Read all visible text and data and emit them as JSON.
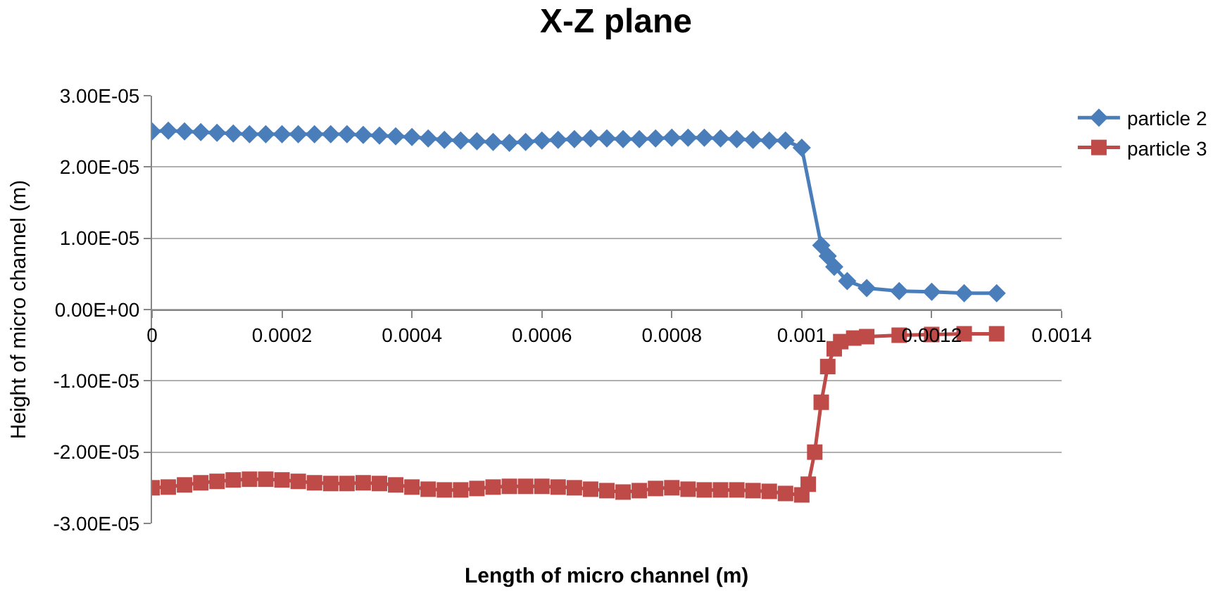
{
  "chart_data": {
    "type": "line",
    "title": "X-Z plane",
    "xlabel": "Length of micro channel (m)",
    "ylabel": "Height of micro channel (m)",
    "xlim": [
      0,
      0.0014
    ],
    "xticks": [
      0,
      0.0002,
      0.0004,
      0.0006,
      0.0008,
      0.001,
      0.0012,
      0.0014
    ],
    "ylim": [
      -3e-05,
      3e-05
    ],
    "yticks": [
      {
        "value": 3e-05,
        "label": "3.00E-05"
      },
      {
        "value": 2e-05,
        "label": "2.00E-05"
      },
      {
        "value": 1e-05,
        "label": "1.00E-05"
      },
      {
        "value": 0,
        "label": "0.00E+00"
      },
      {
        "value": -1e-05,
        "label": "-1.00E-05"
      },
      {
        "value": -2e-05,
        "label": "-2.00E-05"
      },
      {
        "value": -3e-05,
        "label": "-3.00E-05"
      }
    ],
    "grid": "y",
    "legend": "top right",
    "series": [
      {
        "name": "particle 2",
        "color": "#4a7ebb",
        "marker": "diamond",
        "x": [
          0,
          2.5e-05,
          5e-05,
          7.5e-05,
          0.0001,
          0.000125,
          0.00015,
          0.000175,
          0.0002,
          0.000225,
          0.00025,
          0.000275,
          0.0003,
          0.000325,
          0.00035,
          0.000375,
          0.0004,
          0.000425,
          0.00045,
          0.000475,
          0.0005,
          0.000525,
          0.00055,
          0.000575,
          0.0006,
          0.000625,
          0.00065,
          0.000675,
          0.0007,
          0.000725,
          0.00075,
          0.000775,
          0.0008,
          0.000825,
          0.00085,
          0.000875,
          0.0009,
          0.000925,
          0.00095,
          0.000975,
          0.001,
          0.00103,
          0.00104,
          0.00105,
          0.00107,
          0.0011,
          0.00115,
          0.0012,
          0.00125,
          0.0013
        ],
        "values": [
          2.5e-05,
          2.51e-05,
          2.5e-05,
          2.49e-05,
          2.48e-05,
          2.47e-05,
          2.46e-05,
          2.46e-05,
          2.46e-05,
          2.46e-05,
          2.46e-05,
          2.46e-05,
          2.46e-05,
          2.45e-05,
          2.44e-05,
          2.43e-05,
          2.42e-05,
          2.4e-05,
          2.38e-05,
          2.37e-05,
          2.36e-05,
          2.35e-05,
          2.34e-05,
          2.35e-05,
          2.37e-05,
          2.38e-05,
          2.39e-05,
          2.4e-05,
          2.4e-05,
          2.39e-05,
          2.39e-05,
          2.4e-05,
          2.41e-05,
          2.41e-05,
          2.41e-05,
          2.4e-05,
          2.39e-05,
          2.38e-05,
          2.37e-05,
          2.37e-05,
          2.27e-05,
          9e-06,
          7.5e-06,
          6e-06,
          4e-06,
          3e-06,
          2.6e-06,
          2.5e-06,
          2.3e-06,
          2.3e-06
        ]
      },
      {
        "name": "particle 3",
        "color": "#be4b48",
        "marker": "square",
        "x": [
          0,
          2.5e-05,
          5e-05,
          7.5e-05,
          0.0001,
          0.000125,
          0.00015,
          0.000175,
          0.0002,
          0.000225,
          0.00025,
          0.000275,
          0.0003,
          0.000325,
          0.00035,
          0.000375,
          0.0004,
          0.000425,
          0.00045,
          0.000475,
          0.0005,
          0.000525,
          0.00055,
          0.000575,
          0.0006,
          0.000625,
          0.00065,
          0.000675,
          0.0007,
          0.000725,
          0.00075,
          0.000775,
          0.0008,
          0.000825,
          0.00085,
          0.000875,
          0.0009,
          0.000925,
          0.00095,
          0.000975,
          0.001,
          0.00101,
          0.00102,
          0.00103,
          0.00104,
          0.00105,
          0.00106,
          0.00108,
          0.0011,
          0.00115,
          0.0012,
          0.00125,
          0.0013
        ],
        "values": [
          -2.5e-05,
          -2.49e-05,
          -2.46e-05,
          -2.43e-05,
          -2.41e-05,
          -2.39e-05,
          -2.38e-05,
          -2.38e-05,
          -2.39e-05,
          -2.41e-05,
          -2.43e-05,
          -2.44e-05,
          -2.44e-05,
          -2.43e-05,
          -2.44e-05,
          -2.46e-05,
          -2.49e-05,
          -2.52e-05,
          -2.53e-05,
          -2.53e-05,
          -2.51e-05,
          -2.49e-05,
          -2.48e-05,
          -2.48e-05,
          -2.48e-05,
          -2.49e-05,
          -2.5e-05,
          -2.52e-05,
          -2.54e-05,
          -2.56e-05,
          -2.54e-05,
          -2.51e-05,
          -2.5e-05,
          -2.52e-05,
          -2.53e-05,
          -2.53e-05,
          -2.53e-05,
          -2.54e-05,
          -2.55e-05,
          -2.58e-05,
          -2.6e-05,
          -2.45e-05,
          -2e-05,
          -1.3e-05,
          -8e-06,
          -5.5e-06,
          -4.5e-06,
          -4e-06,
          -3.8e-06,
          -3.6e-06,
          -3.5e-06,
          -3.4e-06,
          -3.4e-06
        ]
      }
    ]
  }
}
